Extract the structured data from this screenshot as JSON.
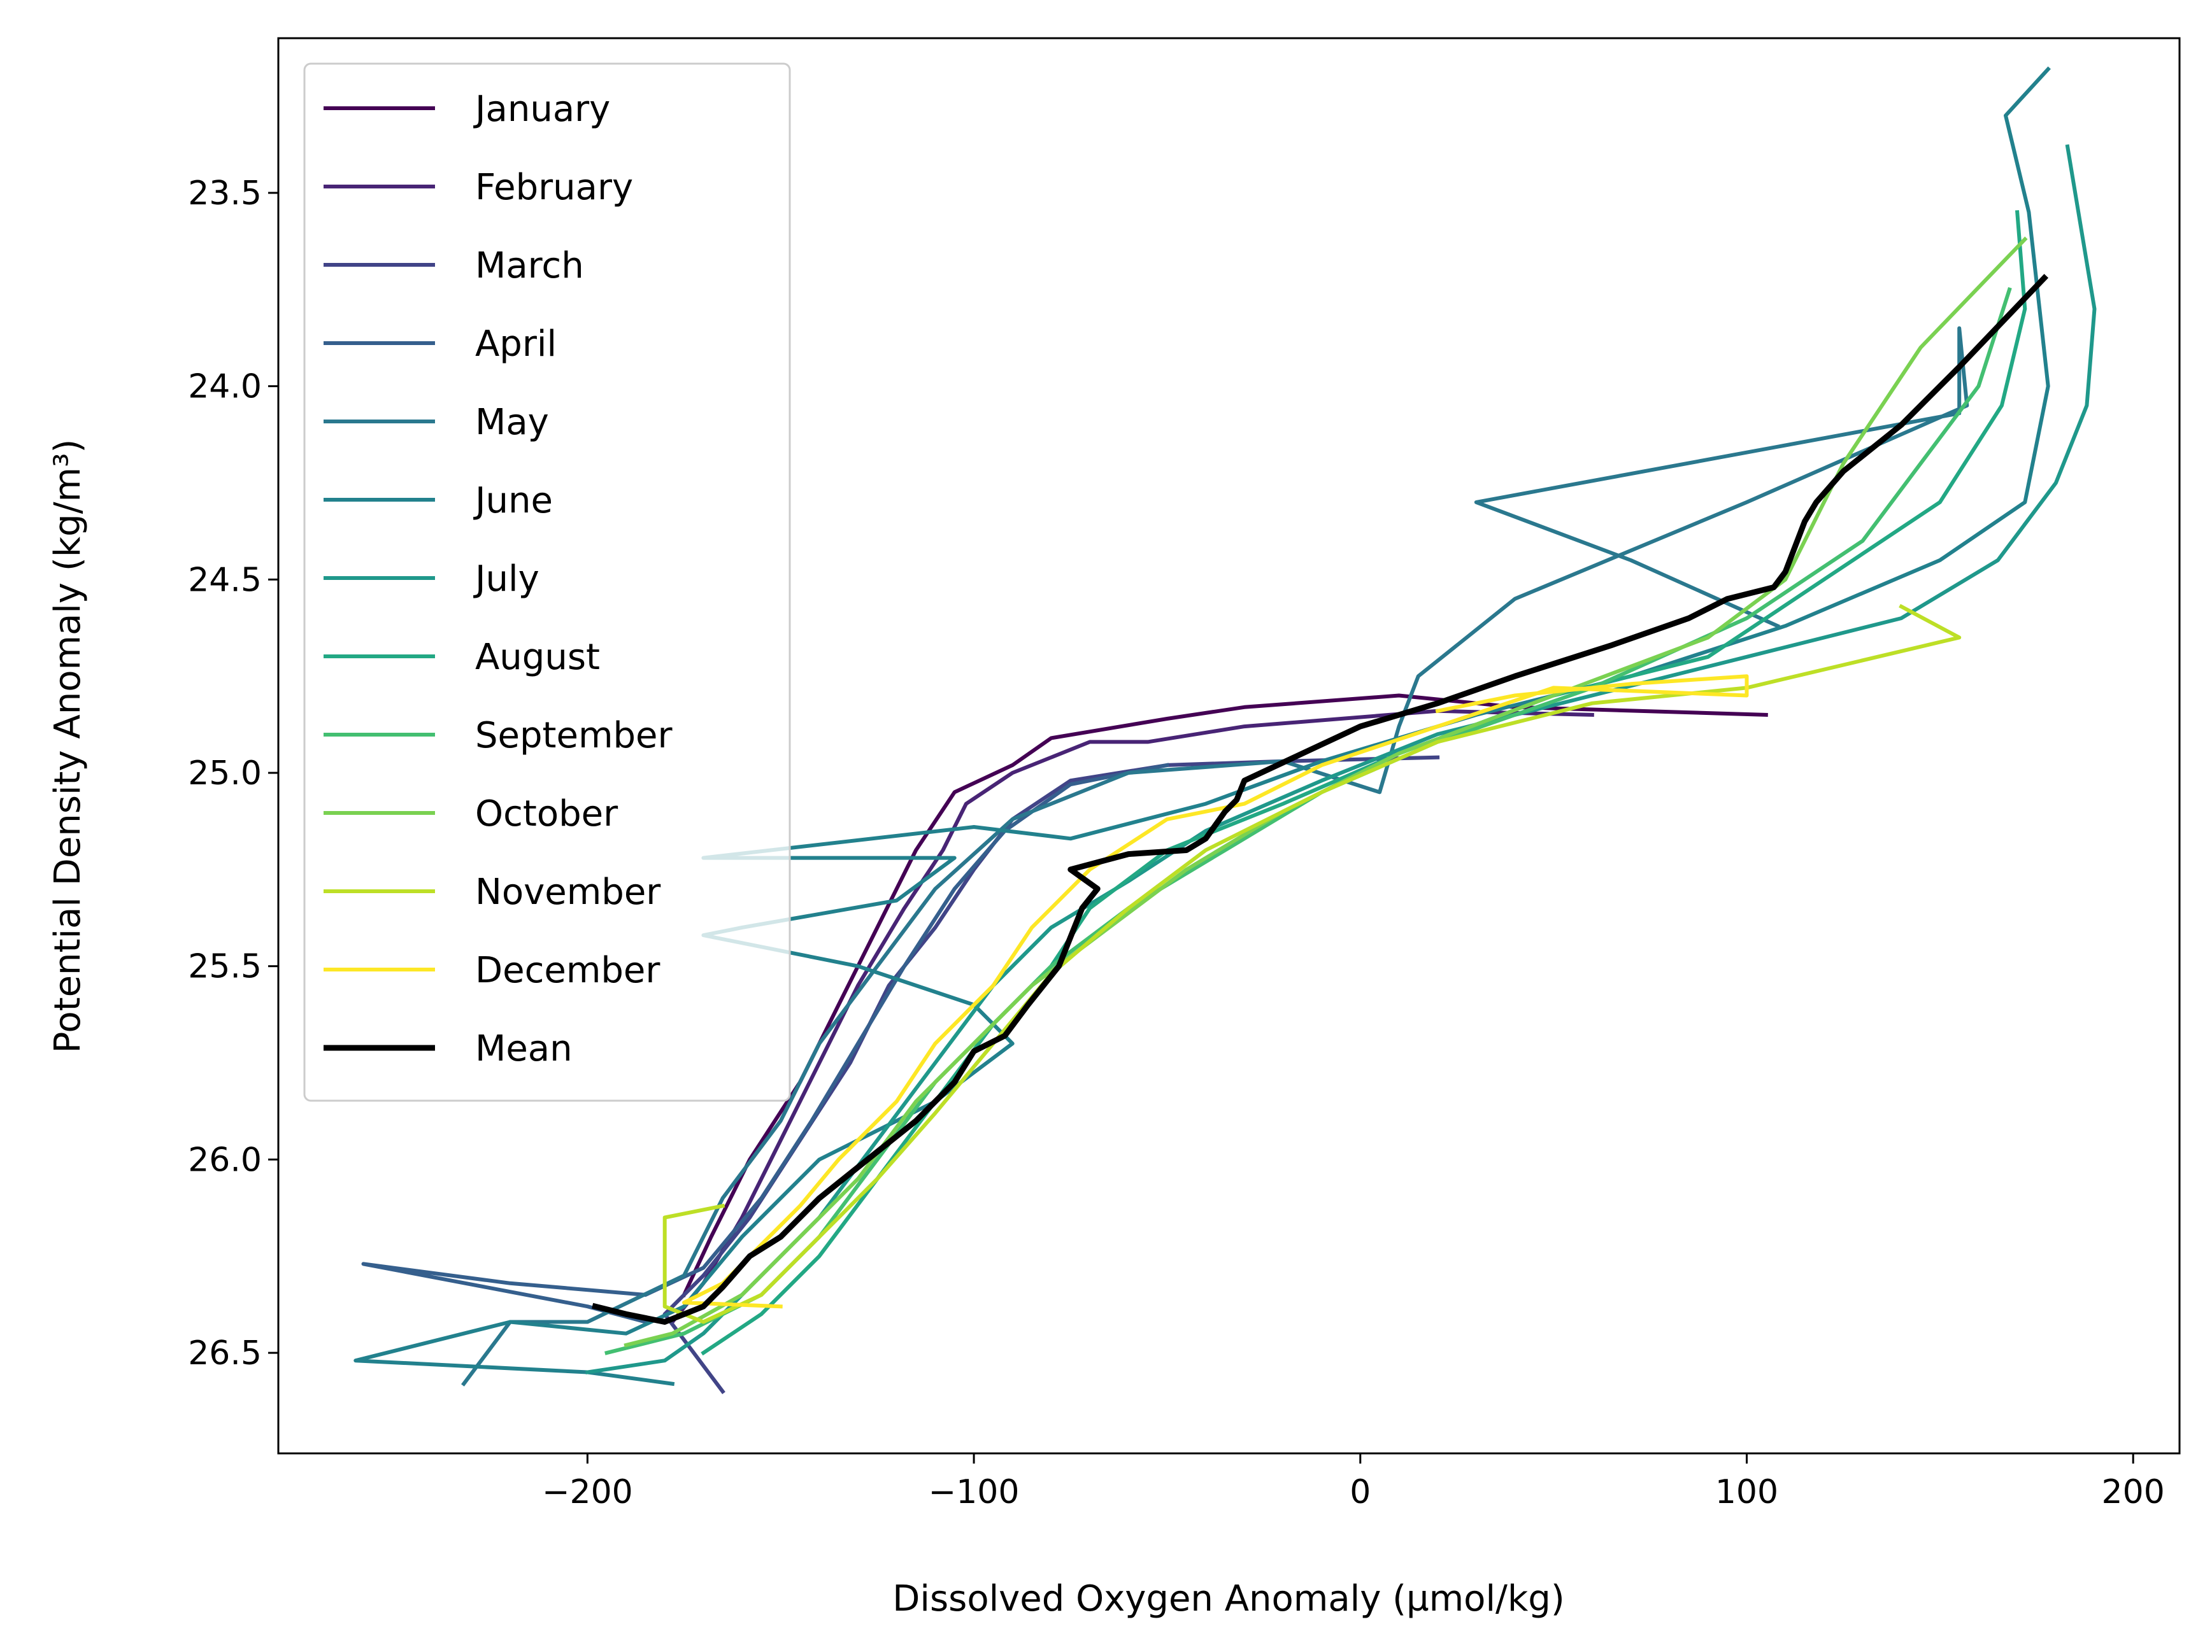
{
  "chart_data": {
    "type": "line",
    "xlabel": "Dissolved Oxygen Anomaly (µmol/kg)",
    "ylabel": "Potential Density Anomaly (kg/m³)",
    "xlim": [
      -280,
      212
    ],
    "ylim": [
      26.76,
      23.1
    ],
    "y_inverted": true,
    "x_ticks": [
      -200,
      -100,
      0,
      100,
      200
    ],
    "x_tick_labels": [
      "−200",
      "−100",
      "0",
      "100",
      "200"
    ],
    "y_ticks": [
      23.5,
      24.0,
      24.5,
      25.0,
      25.5,
      26.0,
      26.5
    ],
    "y_tick_labels": [
      "23.5",
      "24.0",
      "24.5",
      "25.0",
      "25.5",
      "26.0",
      "26.5"
    ],
    "grid": false,
    "legend_position": "upper-left",
    "series": [
      {
        "name": "January",
        "color": "#440154",
        "width": 2,
        "points": [
          [
            105,
            24.85
          ],
          [
            40,
            24.83
          ],
          [
            10,
            24.8
          ],
          [
            -30,
            24.83
          ],
          [
            -50,
            24.86
          ],
          [
            -80,
            24.91
          ],
          [
            -90,
            24.98
          ],
          [
            -105,
            25.05
          ],
          [
            -115,
            25.2
          ],
          [
            -125,
            25.4
          ],
          [
            -135,
            25.6
          ],
          [
            -145,
            25.8
          ],
          [
            -158,
            26.0
          ],
          [
            -168,
            26.2
          ],
          [
            -175,
            26.35
          ]
        ]
      },
      {
        "name": "February",
        "color": "#482475",
        "width": 2,
        "points": [
          [
            60,
            24.85
          ],
          [
            20,
            24.84
          ],
          [
            -30,
            24.88
          ],
          [
            -55,
            24.92
          ],
          [
            -70,
            24.92
          ],
          [
            -90,
            25.0
          ],
          [
            -102,
            25.08
          ],
          [
            -108,
            25.2
          ],
          [
            -118,
            25.35
          ],
          [
            -130,
            25.55
          ],
          [
            -140,
            25.75
          ],
          [
            -150,
            25.95
          ],
          [
            -160,
            26.15
          ],
          [
            -170,
            26.32
          ],
          [
            -178,
            26.42
          ]
        ]
      },
      {
        "name": "March",
        "color": "#414487",
        "width": 2,
        "points": [
          [
            20,
            24.96
          ],
          [
            -20,
            24.97
          ],
          [
            -50,
            24.98
          ],
          [
            -75,
            25.02
          ],
          [
            -90,
            25.12
          ],
          [
            -100,
            25.25
          ],
          [
            -110,
            25.4
          ],
          [
            -122,
            25.55
          ],
          [
            -132,
            25.75
          ],
          [
            -145,
            25.95
          ],
          [
            -158,
            26.15
          ],
          [
            -170,
            26.3
          ],
          [
            -180,
            26.4
          ],
          [
            -165,
            26.6
          ]
        ]
      },
      {
        "name": "April",
        "color": "#355F8D",
        "width": 2,
        "points": [
          [
            -50,
            24.98
          ],
          [
            -75,
            25.03
          ],
          [
            -92,
            25.15
          ],
          [
            -105,
            25.3
          ],
          [
            -118,
            25.5
          ],
          [
            -130,
            25.7
          ],
          [
            -142,
            25.9
          ],
          [
            -155,
            26.1
          ],
          [
            -170,
            26.28
          ],
          [
            -185,
            26.35
          ],
          [
            -220,
            26.32
          ],
          [
            -258,
            26.27
          ],
          [
            -200,
            26.38
          ],
          [
            -185,
            26.42
          ]
        ]
      },
      {
        "name": "May",
        "color": "#2A788E",
        "width": 2,
        "points": [
          [
            108,
            24.62
          ],
          [
            70,
            24.45
          ],
          [
            30,
            24.3
          ],
          [
            155,
            24.07
          ],
          [
            155,
            23.85
          ],
          [
            157,
            24.05
          ],
          [
            100,
            24.3
          ],
          [
            40,
            24.55
          ],
          [
            15,
            24.75
          ],
          [
            10,
            24.88
          ],
          [
            5,
            25.05
          ],
          [
            -20,
            24.97
          ],
          [
            -60,
            25.0
          ],
          [
            -90,
            25.12
          ],
          [
            -110,
            25.3
          ],
          [
            -125,
            25.5
          ],
          [
            -140,
            25.7
          ],
          [
            -150,
            25.9
          ],
          [
            -165,
            26.1
          ],
          [
            -175,
            26.3
          ],
          [
            -200,
            26.42
          ],
          [
            -220,
            26.42
          ],
          [
            -232,
            26.58
          ]
        ]
      },
      {
        "name": "June",
        "color": "#22818D",
        "width": 2,
        "points": [
          [
            178,
            23.18
          ],
          [
            167,
            23.3
          ],
          [
            173,
            23.55
          ],
          [
            178,
            24.0
          ],
          [
            172,
            24.3
          ],
          [
            150,
            24.45
          ],
          [
            110,
            24.62
          ],
          [
            70,
            24.75
          ],
          [
            30,
            24.85
          ],
          [
            -10,
            24.97
          ],
          [
            -40,
            25.08
          ],
          [
            -75,
            25.17
          ],
          [
            -100,
            25.14
          ],
          [
            -170,
            25.22
          ],
          [
            -160,
            25.22
          ],
          [
            -105,
            25.22
          ],
          [
            -120,
            25.33
          ],
          [
            -160,
            25.4
          ],
          [
            -170,
            25.42
          ],
          [
            -130,
            25.5
          ],
          [
            -100,
            25.6
          ],
          [
            -90,
            25.7
          ],
          [
            -110,
            25.85
          ],
          [
            -140,
            26.0
          ],
          [
            -160,
            26.2
          ],
          [
            -175,
            26.38
          ],
          [
            -190,
            26.45
          ],
          [
            -220,
            26.42
          ],
          [
            -260,
            26.52
          ],
          [
            -200,
            26.55
          ],
          [
            -178,
            26.58
          ]
        ]
      },
      {
        "name": "July",
        "color": "#1F988B",
        "width": 2,
        "points": [
          [
            183,
            23.38
          ],
          [
            190,
            23.8
          ],
          [
            188,
            24.05
          ],
          [
            180,
            24.25
          ],
          [
            165,
            24.45
          ],
          [
            140,
            24.6
          ],
          [
            100,
            24.7
          ],
          [
            60,
            24.8
          ],
          [
            20,
            24.9
          ],
          [
            -10,
            25.02
          ],
          [
            -40,
            25.15
          ],
          [
            -60,
            25.28
          ],
          [
            -80,
            25.4
          ],
          [
            -95,
            25.55
          ],
          [
            -110,
            25.75
          ],
          [
            -125,
            25.95
          ],
          [
            -140,
            26.15
          ],
          [
            -155,
            26.3
          ],
          [
            -170,
            26.45
          ],
          [
            -180,
            26.52
          ],
          [
            -200,
            26.55
          ]
        ]
      },
      {
        "name": "August",
        "color": "#22A884",
        "width": 2,
        "points": [
          [
            170,
            23.55
          ],
          [
            172,
            23.8
          ],
          [
            166,
            24.05
          ],
          [
            150,
            24.3
          ],
          [
            120,
            24.5
          ],
          [
            90,
            24.7
          ],
          [
            50,
            24.8
          ],
          [
            10,
            24.95
          ],
          [
            -20,
            25.08
          ],
          [
            -50,
            25.2
          ],
          [
            -70,
            25.35
          ],
          [
            -80,
            25.5
          ],
          [
            -95,
            25.65
          ],
          [
            -110,
            25.85
          ],
          [
            -125,
            26.05
          ],
          [
            -140,
            26.25
          ],
          [
            -155,
            26.4
          ],
          [
            -170,
            26.5
          ]
        ]
      },
      {
        "name": "September",
        "color": "#43BF71",
        "width": 2,
        "points": [
          [
            168,
            23.75
          ],
          [
            160,
            24.0
          ],
          [
            145,
            24.2
          ],
          [
            130,
            24.4
          ],
          [
            100,
            24.6
          ],
          [
            60,
            24.78
          ],
          [
            20,
            24.92
          ],
          [
            -10,
            25.05
          ],
          [
            -35,
            25.2
          ],
          [
            -60,
            25.35
          ],
          [
            -80,
            25.5
          ],
          [
            -95,
            25.65
          ],
          [
            -110,
            25.8
          ],
          [
            -125,
            26.0
          ],
          [
            -140,
            26.2
          ],
          [
            -155,
            26.35
          ],
          [
            -175,
            26.45
          ],
          [
            -195,
            26.5
          ]
        ]
      },
      {
        "name": "October",
        "color": "#7AD151",
        "width": 2,
        "points": [
          [
            172,
            23.62
          ],
          [
            145,
            23.9
          ],
          [
            125,
            24.2
          ],
          [
            110,
            24.5
          ],
          [
            90,
            24.65
          ],
          [
            50,
            24.8
          ],
          [
            10,
            24.95
          ],
          [
            -20,
            25.1
          ],
          [
            -45,
            25.25
          ],
          [
            -65,
            25.4
          ],
          [
            -85,
            25.55
          ],
          [
            -100,
            25.7
          ],
          [
            -115,
            25.85
          ],
          [
            -130,
            26.05
          ],
          [
            -145,
            26.2
          ],
          [
            -160,
            26.35
          ],
          [
            -178,
            26.45
          ],
          [
            -190,
            26.48
          ]
        ]
      },
      {
        "name": "November",
        "color": "#BDDF26",
        "width": 2,
        "points": [
          [
            140,
            24.57
          ],
          [
            155,
            24.65
          ],
          [
            100,
            24.78
          ],
          [
            60,
            24.82
          ],
          [
            20,
            24.92
          ],
          [
            -10,
            25.05
          ],
          [
            -40,
            25.2
          ],
          [
            -60,
            25.35
          ],
          [
            -80,
            25.52
          ],
          [
            -95,
            25.7
          ],
          [
            -110,
            25.88
          ],
          [
            -125,
            26.05
          ],
          [
            -140,
            26.2
          ],
          [
            -155,
            26.35
          ],
          [
            -170,
            26.42
          ],
          [
            -180,
            26.38
          ],
          [
            -180,
            26.15
          ],
          [
            -165,
            26.12
          ]
        ]
      },
      {
        "name": "December",
        "color": "#FDE725",
        "width": 2,
        "points": [
          [
            20,
            24.84
          ],
          [
            40,
            24.8
          ],
          [
            70,
            24.77
          ],
          [
            100,
            24.75
          ],
          [
            100,
            24.8
          ],
          [
            50,
            24.78
          ],
          [
            20,
            24.88
          ],
          [
            -10,
            24.98
          ],
          [
            -30,
            25.08
          ],
          [
            -50,
            25.12
          ],
          [
            -70,
            25.25
          ],
          [
            -85,
            25.4
          ],
          [
            -95,
            25.55
          ],
          [
            -110,
            25.7
          ],
          [
            -120,
            25.85
          ],
          [
            -135,
            26.0
          ],
          [
            -145,
            26.12
          ],
          [
            -155,
            26.22
          ],
          [
            -165,
            26.32
          ],
          [
            -175,
            26.37
          ],
          [
            -150,
            26.38
          ]
        ]
      },
      {
        "name": "Mean",
        "color": "#000000",
        "width": 3,
        "points": [
          [
            177,
            23.72
          ],
          [
            155,
            23.95
          ],
          [
            140,
            24.1
          ],
          [
            125,
            24.22
          ],
          [
            118,
            24.3
          ],
          [
            115,
            24.35
          ],
          [
            110,
            24.48
          ],
          [
            107,
            24.52
          ],
          [
            95,
            24.55
          ],
          [
            85,
            24.6
          ],
          [
            65,
            24.67
          ],
          [
            40,
            24.75
          ],
          [
            20,
            24.82
          ],
          [
            0,
            24.88
          ],
          [
            -15,
            24.95
          ],
          [
            -30,
            25.02
          ],
          [
            -32,
            25.07
          ],
          [
            -35,
            25.1
          ],
          [
            -40,
            25.17
          ],
          [
            -45,
            25.2
          ],
          [
            -60,
            25.21
          ],
          [
            -75,
            25.25
          ],
          [
            -68,
            25.3
          ],
          [
            -72,
            25.35
          ],
          [
            -78,
            25.5
          ],
          [
            -86,
            25.6
          ],
          [
            -92,
            25.68
          ],
          [
            -100,
            25.72
          ],
          [
            -105,
            25.8
          ],
          [
            -115,
            25.9
          ],
          [
            -125,
            25.98
          ],
          [
            -135,
            26.06
          ],
          [
            -140,
            26.1
          ],
          [
            -150,
            26.2
          ],
          [
            -158,
            26.25
          ],
          [
            -165,
            26.33
          ],
          [
            -170,
            26.38
          ],
          [
            -180,
            26.42
          ],
          [
            -190,
            26.4
          ],
          [
            -198,
            26.38
          ]
        ]
      }
    ]
  }
}
